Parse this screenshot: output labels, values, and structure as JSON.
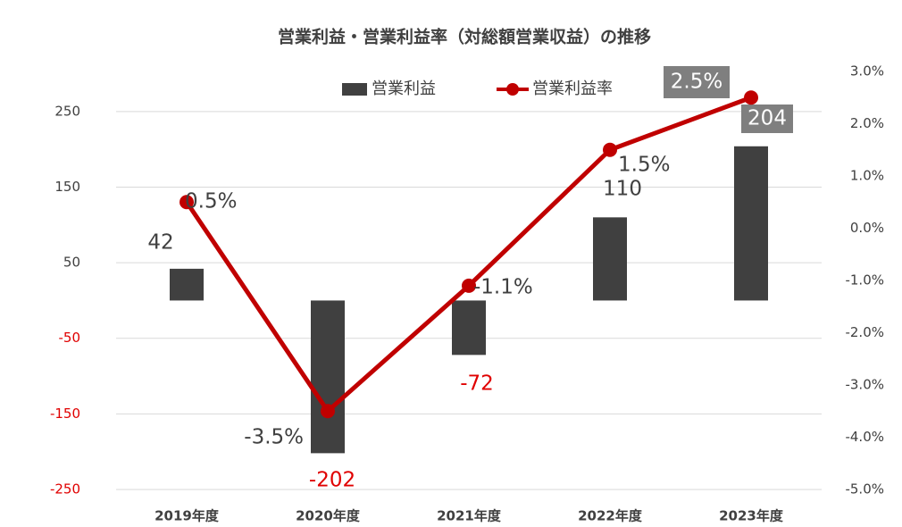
{
  "chart_data": {
    "type": "bar",
    "title": "営業利益・営業利益率（対総額営業収益）の推移",
    "categories": [
      "2019年度",
      "2020年度",
      "2021年度",
      "2022年度",
      "2023年度"
    ],
    "series": [
      {
        "name": "営業利益",
        "type": "bar",
        "color": "#404040",
        "values": [
          42,
          -202,
          -72,
          110,
          204
        ]
      },
      {
        "name": "営業利益率",
        "type": "line",
        "axis": "y2",
        "color": "#c00000",
        "values": [
          0.5,
          -3.5,
          -1.1,
          1.5,
          2.5
        ],
        "value_labels": [
          "0.5%",
          "-3.5%",
          "-1.1%",
          "1.5%",
          "2.5%"
        ]
      }
    ],
    "ylim": [
      -250,
      303
    ],
    "yticks": [
      250,
      150,
      50,
      -50,
      -150,
      -250
    ],
    "y2lim": [
      -5,
      3
    ],
    "y2ticks": [
      {
        "value": 3,
        "label": "3.0%"
      },
      {
        "value": 2,
        "label": "2.0%"
      },
      {
        "value": 1,
        "label": "1.0%"
      },
      {
        "value": 0,
        "label": "0.0%"
      },
      {
        "value": -1,
        "label": "-1.0%"
      },
      {
        "value": -2,
        "label": "-2.0%"
      },
      {
        "value": -3,
        "label": "-3.0%"
      },
      {
        "value": -4,
        "label": "-4.0%"
      },
      {
        "value": -5,
        "label": "-5.0%"
      }
    ],
    "negative_color": "#e00000",
    "grid": true,
    "legend": "top"
  }
}
